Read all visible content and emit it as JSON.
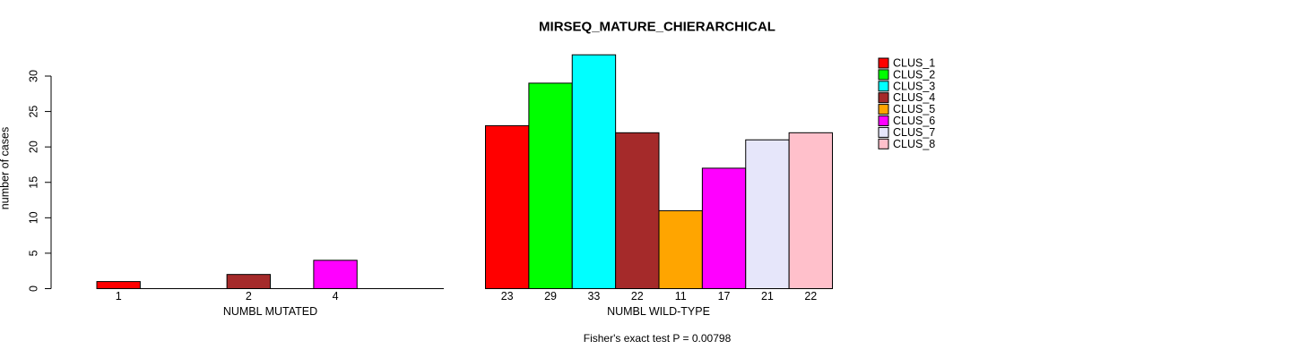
{
  "title": "MIRSEQ_MATURE_CHIERARCHICAL",
  "footer": "Fisher's exact test P = 0.00798",
  "y_axis": {
    "label": "number of cases",
    "ticks": [
      0,
      5,
      10,
      15,
      20,
      25,
      30
    ]
  },
  "legend": {
    "position": "top-right",
    "entries": [
      {
        "label": "CLUS_1",
        "color": "#FF0000"
      },
      {
        "label": "CLUS_2",
        "color": "#00FF00"
      },
      {
        "label": "CLUS_3",
        "color": "#00FFFF"
      },
      {
        "label": "CLUS_4",
        "color": "#A52A2A"
      },
      {
        "label": "CLUS_5",
        "color": "#FFA500"
      },
      {
        "label": "CLUS_6",
        "color": "#FF00FF"
      },
      {
        "label": "CLUS_7",
        "color": "#E6E6FA"
      },
      {
        "label": "CLUS_8",
        "color": "#FFC0CB"
      }
    ]
  },
  "chart_data": [
    {
      "type": "bar",
      "xlabel": "NUMBL MUTATED",
      "ylabel": "number of cases",
      "categories": [
        "CLUS_1",
        "CLUS_2",
        "CLUS_3",
        "CLUS_4",
        "CLUS_5",
        "CLUS_6",
        "CLUS_7",
        "CLUS_8"
      ],
      "values": [
        1,
        0,
        0,
        2,
        0,
        4,
        0,
        0
      ],
      "bar_labels": [
        "1",
        "",
        "",
        "2",
        "",
        "4",
        "",
        ""
      ],
      "colors": [
        "#FF0000",
        "#00FF00",
        "#00FFFF",
        "#A52A2A",
        "#FFA500",
        "#FF00FF",
        "#E6E6FA",
        "#FFC0CB"
      ],
      "ylim": [
        0,
        33
      ],
      "grid": false
    },
    {
      "type": "bar",
      "xlabel": "NUMBL WILD-TYPE",
      "ylabel": "number of cases",
      "categories": [
        "CLUS_1",
        "CLUS_2",
        "CLUS_3",
        "CLUS_4",
        "CLUS_5",
        "CLUS_6",
        "CLUS_7",
        "CLUS_8"
      ],
      "values": [
        23,
        29,
        33,
        22,
        11,
        17,
        21,
        22
      ],
      "bar_labels": [
        "23",
        "29",
        "33",
        "22",
        "11",
        "17",
        "21",
        "22"
      ],
      "colors": [
        "#FF0000",
        "#00FF00",
        "#00FFFF",
        "#A52A2A",
        "#FFA500",
        "#FF00FF",
        "#E6E6FA",
        "#FFC0CB"
      ],
      "ylim": [
        0,
        33
      ],
      "grid": false
    }
  ]
}
